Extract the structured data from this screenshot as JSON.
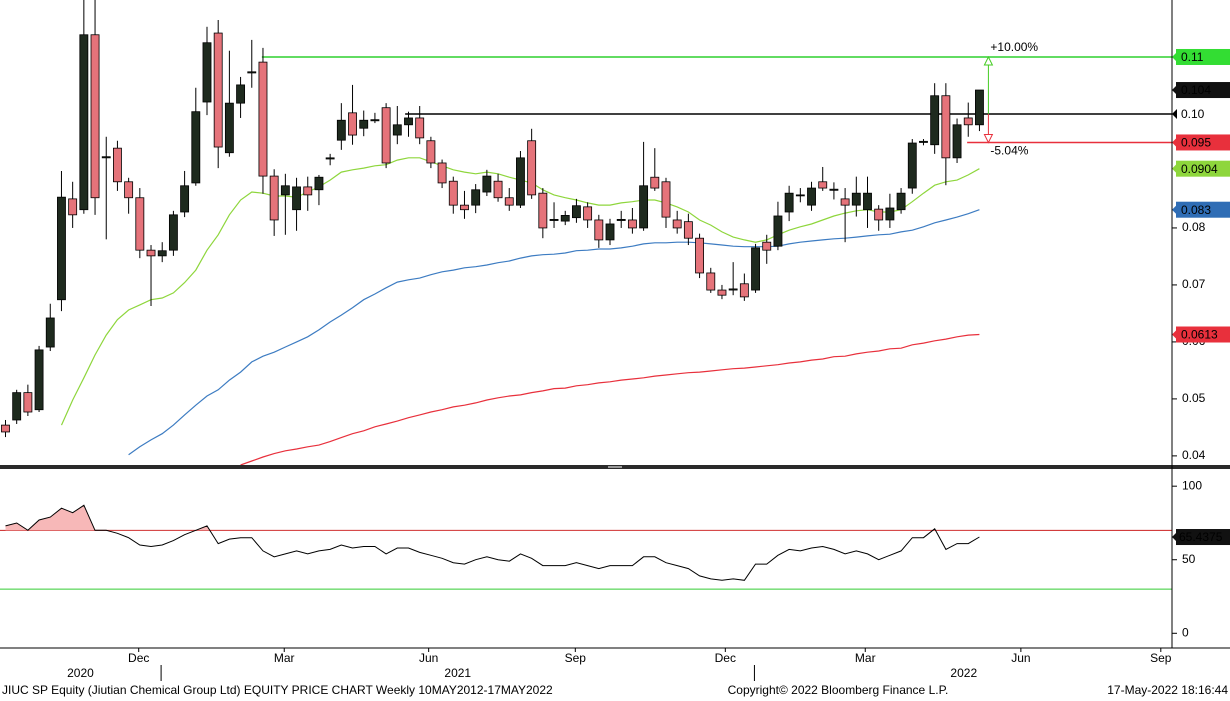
{
  "chart_data": {
    "type": "candlestick",
    "up_color": "#1e2a1e",
    "down_color": "#e5737a",
    "xlim": [
      -0.49,
      104.2
    ],
    "ylim": [
      0.0384,
      0.12
    ],
    "yticks": [
      0.04,
      0.05,
      0.06,
      0.07,
      0.08
    ],
    "xticks": [
      {
        "value": 11.9,
        "label": "Dec"
      },
      {
        "value": 24.9,
        "label": "Mar"
      },
      {
        "value": 37.8,
        "label": "Jun"
      },
      {
        "value": 50.9,
        "label": "Sep"
      },
      {
        "value": 64.3,
        "label": "Dec"
      },
      {
        "value": 76.8,
        "label": "Mar"
      },
      {
        "value": 90.7,
        "label": "Jun"
      },
      {
        "value": 103.2,
        "label": "Sep"
      }
    ],
    "year_labels": [
      {
        "value": 6.7,
        "label": "2020"
      },
      {
        "value": 40.4,
        "label": "2021"
      },
      {
        "value": 85.6,
        "label": "2022"
      }
    ],
    "year_ticks": [
      13.9,
      66.9
    ],
    "grid": false,
    "open": [
      0.0454,
      0.0463,
      0.0511,
      0.0481,
      0.0591,
      0.0674,
      0.0851,
      0.0832,
      0.1139,
      0.0923,
      0.094,
      0.0881,
      0.0853,
      0.0761,
      0.0751,
      0.0761,
      0.0828,
      0.0879,
      0.1021,
      0.1142,
      0.0932,
      0.1019,
      0.1072,
      0.1091,
      0.0891,
      0.0858,
      0.0832,
      0.0872,
      0.0867,
      0.0921,
      0.0954,
      0.1002,
      0.0975,
      0.0988,
      0.1011,
      0.0963,
      0.0981,
      0.0993,
      0.0953,
      0.0914,
      0.0882,
      0.084,
      0.084,
      0.0863,
      0.0882,
      0.0853,
      0.084,
      0.0953,
      0.0861,
      0.0813,
      0.0812,
      0.0818,
      0.0837,
      0.0814,
      0.0779,
      0.0813,
      0.0814,
      0.08,
      0.0889,
      0.0881,
      0.0814,
      0.0811,
      0.0782,
      0.0721,
      0.0691,
      0.0691,
      0.0702,
      0.0691,
      0.0775,
      0.0768,
      0.0828,
      0.0857,
      0.084,
      0.0881,
      0.0866,
      0.0851,
      0.084,
      0.0832,
      0.0833,
      0.0814,
      0.0832,
      0.087,
      0.095,
      0.0946,
      0.1032,
      0.0923,
      0.0993,
      0.0981
    ],
    "high": [
      0.0463,
      0.0516,
      0.0525,
      0.0593,
      0.0667,
      0.09,
      0.0881,
      0.12,
      0.12,
      0.096,
      0.0953,
      0.0888,
      0.087,
      0.077,
      0.0775,
      0.083,
      0.09,
      0.1046,
      0.1153,
      0.1165,
      0.1111,
      0.1065,
      0.113,
      0.1116,
      0.0903,
      0.0895,
      0.0888,
      0.089,
      0.0893,
      0.093,
      0.1019,
      0.1051,
      0.1006,
      0.1002,
      0.1019,
      0.1014,
      0.1004,
      0.1014,
      0.096,
      0.092,
      0.089,
      0.0865,
      0.0877,
      0.0902,
      0.0895,
      0.087,
      0.0935,
      0.0974,
      0.087,
      0.0845,
      0.083,
      0.0851,
      0.0845,
      0.0823,
      0.0816,
      0.083,
      0.0835,
      0.0951,
      0.094,
      0.0888,
      0.083,
      0.0825,
      0.079,
      0.073,
      0.07,
      0.074,
      0.072,
      0.0772,
      0.0788,
      0.0846,
      0.0874,
      0.087,
      0.0881,
      0.0907,
      0.088,
      0.087,
      0.089,
      0.089,
      0.084,
      0.086,
      0.087,
      0.0956,
      0.0956,
      0.1054,
      0.1054,
      0.0992,
      0.102,
      0.1042
    ],
    "low": [
      0.0433,
      0.0456,
      0.047,
      0.0477,
      0.0584,
      0.0654,
      0.08,
      0.0825,
      0.0823,
      0.078,
      0.0865,
      0.0825,
      0.0747,
      0.0663,
      0.074,
      0.0751,
      0.0819,
      0.0874,
      0.0998,
      0.0905,
      0.0925,
      0.0993,
      0.1046,
      0.086,
      0.0786,
      0.0788,
      0.0795,
      0.083,
      0.084,
      0.091,
      0.0937,
      0.0946,
      0.0961,
      0.0984,
      0.0905,
      0.0947,
      0.096,
      0.0947,
      0.0905,
      0.087,
      0.0825,
      0.0816,
      0.0826,
      0.0856,
      0.0846,
      0.083,
      0.0835,
      0.0851,
      0.0782,
      0.08,
      0.0805,
      0.0809,
      0.08,
      0.0765,
      0.077,
      0.08,
      0.079,
      0.0795,
      0.0865,
      0.08,
      0.079,
      0.077,
      0.0712,
      0.0686,
      0.0675,
      0.0682,
      0.0672,
      0.0686,
      0.0737,
      0.0761,
      0.0812,
      0.0845,
      0.083,
      0.0865,
      0.085,
      0.0775,
      0.082,
      0.08,
      0.0795,
      0.08,
      0.0825,
      0.086,
      0.0945,
      0.093,
      0.0875,
      0.0914,
      0.096,
      0.097
    ],
    "close": [
      0.0442,
      0.0511,
      0.0477,
      0.0586,
      0.0642,
      0.0854,
      0.0823,
      0.1139,
      0.0853,
      0.0925,
      0.0881,
      0.0853,
      0.0761,
      0.0751,
      0.076,
      0.0823,
      0.0874,
      0.1004,
      0.1125,
      0.0942,
      0.1019,
      0.1051,
      0.1074,
      0.0891,
      0.0814,
      0.0874,
      0.0872,
      0.0858,
      0.0889,
      0.0923,
      0.0989,
      0.0963,
      0.0989,
      0.099,
      0.0914,
      0.0981,
      0.0993,
      0.0958,
      0.0914,
      0.0879,
      0.084,
      0.0832,
      0.0867,
      0.0891,
      0.0853,
      0.084,
      0.0923,
      0.0858,
      0.08,
      0.0815,
      0.0822,
      0.0839,
      0.0814,
      0.0779,
      0.0807,
      0.0815,
      0.08,
      0.0874,
      0.087,
      0.0819,
      0.08,
      0.0782,
      0.0721,
      0.0691,
      0.0682,
      0.0693,
      0.0679,
      0.0765,
      0.0761,
      0.0821,
      0.0861,
      0.0858,
      0.087,
      0.087,
      0.0868,
      0.084,
      0.0861,
      0.0861,
      0.0814,
      0.0835,
      0.0861,
      0.0949,
      0.0952,
      0.1032,
      0.0923,
      0.0981,
      0.0981,
      0.1042
    ],
    "last_price_label": "0.104",
    "overlays": [
      {
        "color": "#8ed63c",
        "box_color": "#8ed63c",
        "text_color": "#000000",
        "value_label": "0.0904",
        "values": [
          null,
          null,
          null,
          null,
          null,
          0.0454,
          0.0498,
          0.0537,
          0.0577,
          0.0612,
          0.0639,
          0.0656,
          0.0665,
          0.0674,
          0.0677,
          0.0686,
          0.0704,
          0.0726,
          0.0761,
          0.0788,
          0.0823,
          0.0849,
          0.0863,
          0.0861,
          0.0856,
          0.0856,
          0.0854,
          0.0863,
          0.0872,
          0.0884,
          0.0898,
          0.0902,
          0.0905,
          0.0909,
          0.0911,
          0.0919,
          0.0923,
          0.0923,
          0.0916,
          0.0909,
          0.0902,
          0.0898,
          0.0895,
          0.0898,
          0.0895,
          0.0889,
          0.0884,
          0.0879,
          0.0867,
          0.0858,
          0.0853,
          0.0849,
          0.0844,
          0.084,
          0.084,
          0.0844,
          0.0846,
          0.0849,
          0.0849,
          0.0844,
          0.0837,
          0.0828,
          0.0814,
          0.0805,
          0.0793,
          0.0784,
          0.0779,
          0.0775,
          0.0779,
          0.0788,
          0.0796,
          0.0802,
          0.0807,
          0.0814,
          0.0821,
          0.0826,
          0.083,
          0.0832,
          0.0828,
          0.0828,
          0.0832,
          0.0846,
          0.0861,
          0.0875,
          0.0881,
          0.0884,
          0.0893,
          0.0904
        ]
      },
      {
        "color": "#3d7cc2",
        "box_color": "#2f6db5",
        "text_color": "#ffffff",
        "value_label": "0.083",
        "values": [
          null,
          null,
          null,
          null,
          null,
          null,
          null,
          null,
          null,
          null,
          null,
          0.0402,
          0.0416,
          0.0428,
          0.0439,
          0.0454,
          0.0472,
          0.0489,
          0.0505,
          0.0516,
          0.0533,
          0.0547,
          0.0565,
          0.0575,
          0.0582,
          0.0591,
          0.06,
          0.0609,
          0.0621,
          0.0635,
          0.0647,
          0.066,
          0.0674,
          0.0684,
          0.0695,
          0.0705,
          0.0709,
          0.0712,
          0.0718,
          0.0723,
          0.0726,
          0.073,
          0.0732,
          0.0735,
          0.0739,
          0.0742,
          0.0747,
          0.0751,
          0.0753,
          0.0754,
          0.0756,
          0.076,
          0.0761,
          0.0763,
          0.0763,
          0.0765,
          0.0768,
          0.0772,
          0.0774,
          0.0774,
          0.0775,
          0.0775,
          0.0774,
          0.0772,
          0.077,
          0.0768,
          0.0767,
          0.0767,
          0.0767,
          0.0768,
          0.0772,
          0.0775,
          0.0777,
          0.0779,
          0.0781,
          0.0782,
          0.0784,
          0.0786,
          0.0788,
          0.0789,
          0.0793,
          0.0796,
          0.0802,
          0.0809,
          0.0814,
          0.0819,
          0.0825,
          0.0832
        ]
      },
      {
        "color": "#e8303c",
        "box_color": "#e8303c",
        "text_color": "#ffffff",
        "value_label": "0.0613",
        "values": [
          null,
          null,
          null,
          null,
          null,
          null,
          null,
          null,
          null,
          null,
          null,
          null,
          null,
          null,
          null,
          null,
          null,
          null,
          null,
          null,
          null,
          0.0384,
          0.0391,
          0.0398,
          0.0404,
          0.0409,
          0.0412,
          0.0416,
          0.0419,
          0.0425,
          0.0432,
          0.0439,
          0.0444,
          0.0451,
          0.0456,
          0.0461,
          0.0467,
          0.0472,
          0.0477,
          0.0481,
          0.0486,
          0.0489,
          0.0493,
          0.0498,
          0.0502,
          0.0505,
          0.0507,
          0.0511,
          0.0514,
          0.0518,
          0.0519,
          0.0523,
          0.0525,
          0.0528,
          0.053,
          0.0533,
          0.0535,
          0.0537,
          0.054,
          0.0542,
          0.0544,
          0.0546,
          0.0547,
          0.0549,
          0.0551,
          0.0553,
          0.0554,
          0.0556,
          0.0558,
          0.056,
          0.0563,
          0.0565,
          0.0568,
          0.057,
          0.0574,
          0.0575,
          0.0579,
          0.0582,
          0.0584,
          0.0588,
          0.0589,
          0.0595,
          0.0598,
          0.0602,
          0.0605,
          0.0609,
          0.0612,
          0.0613
        ]
      }
    ],
    "levels": [
      {
        "value": 0.11,
        "label": "0.11",
        "from": 22.9,
        "color": "#2ed12e",
        "box_color": "#33dd33",
        "text_color": "#000000"
      },
      {
        "value": 0.1,
        "label": "0.10",
        "from": 35.7,
        "color": "#000000",
        "box_color": "#ffffff",
        "text_color": "#000000"
      },
      {
        "value": 0.095,
        "label": "0.095",
        "from": 85.9,
        "color": "#e8303c",
        "box_color": "#e8303c",
        "text_color": "#ffffff"
      }
    ],
    "annotations": [
      {
        "text": "+10.00%",
        "color": "#44cc22"
      },
      {
        "text": "-5.04%",
        "color": "#e8303c"
      }
    ],
    "rsi": {
      "color": "#000000",
      "fill": "#f7b8b8",
      "ylim": [
        -10,
        111
      ],
      "yticks": [
        0,
        50,
        100
      ],
      "levels": [
        {
          "value": 70,
          "color": "#cc2020"
        },
        {
          "value": 30,
          "color": "#33cc33"
        }
      ],
      "last_label": "65.4375",
      "values": [
        73,
        75,
        70,
        77,
        79,
        85,
        82,
        87,
        70,
        70,
        68,
        65,
        60,
        59,
        60,
        63,
        67,
        70,
        73,
        61,
        64,
        65,
        65,
        56,
        52,
        54,
        56,
        54,
        56,
        57,
        60,
        58,
        59,
        59,
        54,
        58,
        58,
        55,
        53,
        51,
        48,
        47,
        50,
        52,
        50,
        49,
        54,
        51,
        46,
        46,
        46,
        48,
        46,
        44,
        46,
        46,
        46,
        52,
        52,
        48,
        46,
        44,
        39,
        37,
        36,
        37,
        36,
        47,
        47,
        53,
        57,
        56,
        58,
        59,
        57,
        54,
        56,
        54,
        50,
        53,
        56,
        65,
        65,
        71,
        57,
        61,
        61,
        65.4375
      ]
    },
    "footer_left": "JIUC SP Equity (Jiutian Chemical Group Ltd) EQUITY PRICE CHART  Weekly 10MAY2012-17MAY2022",
    "footer_center": "Copyright© 2022 Bloomberg Finance L.P.",
    "footer_right": "17-May-2022 18:16:44"
  }
}
